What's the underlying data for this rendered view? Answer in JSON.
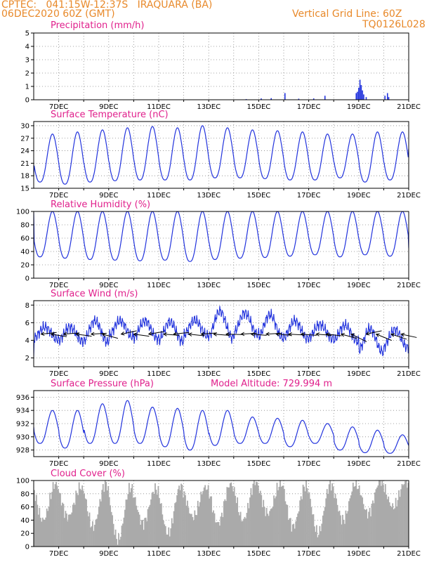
{
  "header": {
    "line1_left": "CPTEC:   041:15W-12:37S   IRAQUARA (BA)",
    "line2_left": "06DEC2020 60Z (GMT)",
    "line2_right": "Vertical Grid Line: 60Z",
    "line3_right": "TQ0126L028"
  },
  "x_axis": {
    "ticks": [
      "7DEC",
      "9DEC",
      "11DEC",
      "13DEC",
      "15DEC",
      "17DEC",
      "19DEC",
      "21DEC"
    ]
  },
  "colors": {
    "header_text": "#e8892a",
    "panel_title": "#e0208c",
    "series": "#2233dd",
    "cloud_fill": "#aaaaaa",
    "grid": "#888888"
  },
  "chart_data": [
    {
      "type": "bar",
      "title": "Precipitation (mm/h)",
      "ylim": [
        0,
        5
      ],
      "yticks": [
        "0",
        "1",
        "2",
        "3",
        "4",
        "5"
      ],
      "grid": true,
      "values_note_days": [
        {
          "day": 14.5,
          "v": 0.05
        },
        {
          "day": 15.1,
          "v": 0.1
        },
        {
          "day": 15.5,
          "v": 0.12
        },
        {
          "day": 16.05,
          "v": 0.5
        },
        {
          "day": 16.6,
          "v": 0.08
        },
        {
          "day": 17.2,
          "v": 0.1
        },
        {
          "day": 17.65,
          "v": 0.3
        },
        {
          "day": 18.9,
          "v": 0.5
        },
        {
          "day": 18.95,
          "v": 0.6
        },
        {
          "day": 19.0,
          "v": 0.9
        },
        {
          "day": 19.05,
          "v": 1.5
        },
        {
          "day": 19.1,
          "v": 1.1
        },
        {
          "day": 19.15,
          "v": 0.7
        },
        {
          "day": 19.2,
          "v": 0.4
        },
        {
          "day": 19.3,
          "v": 0.2
        },
        {
          "day": 20.05,
          "v": 0.3
        },
        {
          "day": 20.15,
          "v": 0.5
        },
        {
          "day": 20.2,
          "v": 0.2
        }
      ]
    },
    {
      "type": "line",
      "title": "Surface Temperature (nC)",
      "ylim": [
        15,
        31
      ],
      "yticks": [
        "15",
        "18",
        "21",
        "24",
        "27",
        "30"
      ],
      "grid": true,
      "daily_max": [
        28.0,
        28.5,
        29.0,
        29.5,
        29.8,
        29.5,
        30.0,
        29.5,
        29.0,
        28.8,
        28.5,
        28.0,
        28.0,
        28.5,
        28.5
      ],
      "daily_min": [
        16.5,
        16.0,
        16.5,
        16.8,
        17.0,
        17.0,
        17.0,
        17.5,
        17.5,
        17.3,
        17.0,
        17.0,
        17.5,
        16.5,
        17.0
      ],
      "start_value": 18.0,
      "end_value": 24.5
    },
    {
      "type": "line",
      "title": "Relative Humidity (%)",
      "ylim": [
        0,
        100
      ],
      "yticks": [
        "0",
        "20",
        "40",
        "60",
        "80",
        "100"
      ],
      "grid": true,
      "daily_max": [
        100,
        100,
        100,
        100,
        100,
        100,
        100,
        100,
        100,
        100,
        100,
        100,
        100,
        100,
        100
      ],
      "daily_min": [
        32,
        30,
        28,
        27,
        26,
        27,
        25,
        28,
        30,
        31,
        33,
        35,
        32,
        35,
        33
      ],
      "start_value": 98,
      "end_value": 45
    },
    {
      "type": "line",
      "title": "Surface Wind (m/s)",
      "ylim": [
        1,
        8.5
      ],
      "yticks": [
        "2",
        "4",
        "6",
        "8"
      ],
      "grid": true,
      "daily_mean": [
        4.8,
        4.7,
        5.0,
        5.3,
        5.2,
        5.0,
        5.4,
        5.8,
        5.9,
        5.6,
        5.2,
        5.0,
        4.8,
        4.0,
        4.2
      ],
      "daily_amp": [
        0.7,
        0.8,
        1.2,
        0.9,
        1.0,
        1.1,
        0.9,
        1.5,
        1.2,
        1.3,
        1.0,
        0.8,
        0.9,
        1.3,
        1.0
      ],
      "arrow_days": [
        6.3,
        6.7,
        7.2,
        7.7,
        8.3,
        8.75,
        9.5,
        10.0,
        10.6,
        11.2,
        11.6,
        12.2,
        12.7,
        13.2,
        13.7,
        14.3,
        14.7,
        15.3,
        15.7,
        16.2,
        16.7,
        17.3,
        17.7,
        18.3,
        18.7,
        19.3,
        19.7,
        20.3,
        20.7
      ],
      "arrow_dy": [
        -4,
        6,
        -3,
        5,
        -2,
        10,
        -8,
        5,
        -6,
        3,
        -4,
        4,
        -3,
        3,
        1,
        -2,
        3,
        -2,
        3,
        2,
        3,
        3,
        4,
        10,
        18,
        -8,
        15,
        12,
        8
      ]
    },
    {
      "type": "line",
      "title": "Surface Pressure (hPa)",
      "subtitle": "Model Altitude: 729.994 m",
      "ylim": [
        927,
        937
      ],
      "yticks": [
        "928",
        "930",
        "932",
        "934",
        "936"
      ],
      "grid": true,
      "daily_max": [
        934.0,
        934.0,
        935.0,
        935.5,
        934.5,
        934.3,
        934.0,
        934.0,
        933.0,
        932.8,
        932.5,
        932.0,
        931.5,
        931.0,
        930.3
      ],
      "daily_min": [
        929.0,
        928.3,
        929.0,
        929.0,
        929.0,
        928.5,
        928.0,
        928.7,
        929.0,
        929.0,
        928.5,
        929.0,
        928.0,
        927.6,
        927.5
      ],
      "start_value": 931.5,
      "end_value": 929.0
    },
    {
      "type": "bar",
      "title": "Cloud Cover (%)",
      "ylim": [
        0,
        100
      ],
      "yticks": [
        "0",
        "20",
        "40",
        "60",
        "80",
        "100"
      ],
      "grid": true,
      "daily_high": [
        95,
        90,
        95,
        90,
        88,
        92,
        90,
        95,
        98,
        95,
        92,
        95,
        96,
        100,
        98
      ],
      "daily_low": [
        40,
        45,
        30,
        10,
        35,
        20,
        45,
        35,
        40,
        50,
        30,
        20,
        40,
        50,
        60
      ]
    }
  ]
}
